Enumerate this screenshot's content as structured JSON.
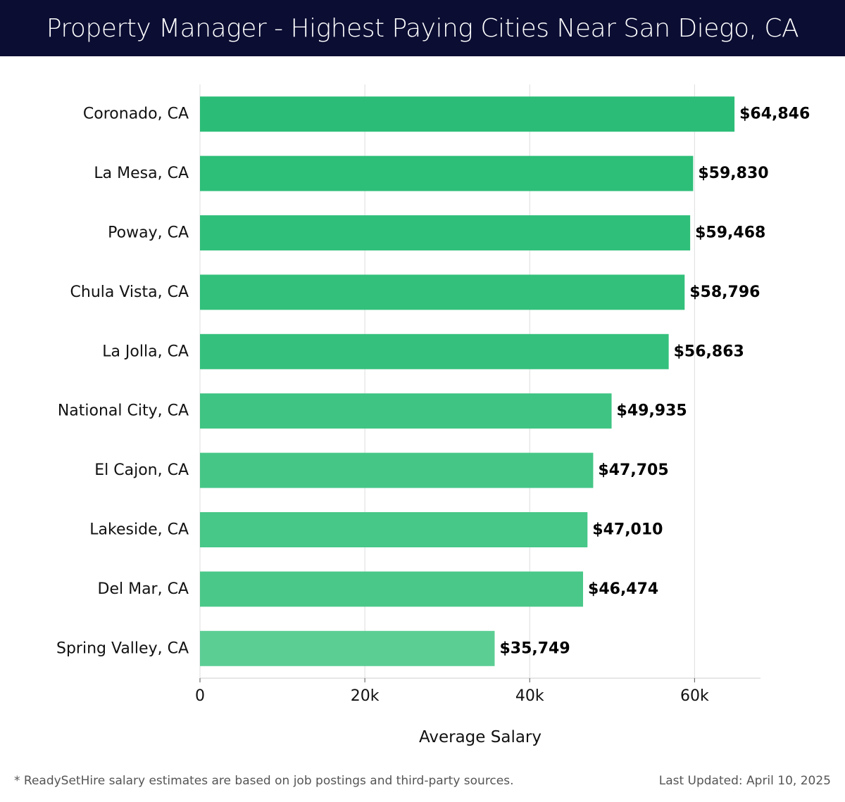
{
  "header": {
    "title": "Property Manager - Highest Paying Cities Near San Diego, CA"
  },
  "chart_data": {
    "type": "bar",
    "orientation": "horizontal",
    "categories": [
      "Coronado, CA",
      "La Mesa, CA",
      "Poway, CA",
      "Chula Vista, CA",
      "La Jolla, CA",
      "National City, CA",
      "El Cajon, CA",
      "Lakeside, CA",
      "Del Mar, CA",
      "Spring Valley, CA"
    ],
    "values": [
      64846,
      59830,
      59468,
      58796,
      56863,
      49935,
      47705,
      47010,
      46474,
      35749
    ],
    "value_labels": [
      "$64,846",
      "$59,830",
      "$59,468",
      "$58,796",
      "$56,863",
      "$49,935",
      "$47,705",
      "$47,010",
      "$46,474",
      "$35,749"
    ],
    "xlabel": "Average Salary",
    "ylabel": "",
    "xlim": [
      0,
      68000
    ],
    "xticks": [
      0,
      20000,
      40000,
      60000
    ],
    "xtick_labels": [
      "0",
      "20k",
      "40k",
      "60k"
    ],
    "grid": "vertical",
    "bar_colors": [
      "#2bbd77",
      "#2dbe78",
      "#30bf7a",
      "#32c07b",
      "#35c17d",
      "#3fc483",
      "#45c686",
      "#47c788",
      "#4ac889",
      "#5bce94"
    ]
  },
  "footer": {
    "note": "* ReadySetHire salary estimates are based on job postings and third-party sources.",
    "updated": "Last Updated: April 10, 2025"
  }
}
